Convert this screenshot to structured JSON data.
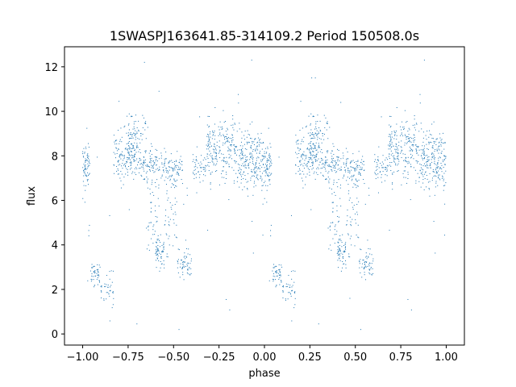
{
  "chart_data": {
    "type": "scatter",
    "title": "1SWASPJ163641.85-314109.2 Period 150508.0s",
    "xlabel": "phase",
    "ylabel": "flux",
    "xlim": [
      -1.1,
      1.1
    ],
    "ylim": [
      -0.5,
      12.9
    ],
    "xticks": [
      -1.0,
      -0.75,
      -0.5,
      -0.25,
      0.0,
      0.25,
      0.5,
      0.75,
      1.0
    ],
    "xtick_labels": [
      "−1.00",
      "−0.75",
      "−0.50",
      "−0.25",
      "0.00",
      "0.25",
      "0.50",
      "0.75",
      "1.00"
    ],
    "yticks": [
      0,
      2,
      4,
      6,
      8,
      10,
      12
    ],
    "ytick_labels": [
      "0",
      "2",
      "4",
      "6",
      "8",
      "10",
      "12"
    ],
    "grid": false,
    "marker_color": "#1f77b4",
    "series": [
      {
        "period_phase": true,
        "clusters": [
          {
            "phase": [
              0.0,
              0.04
            ],
            "flux_mean": 7.6,
            "flux_sd": 0.55,
            "n": 70
          },
          {
            "phase": [
              0.04,
              0.1
            ],
            "flux_mean": 2.7,
            "flux_sd": 0.25,
            "n": 45
          },
          {
            "phase": [
              0.1,
              0.17
            ],
            "flux_mean": 2.0,
            "flux_sd": 0.35,
            "n": 40
          },
          {
            "phase": [
              0.17,
              0.3
            ],
            "flux_mean": 8.1,
            "flux_sd": 0.6,
            "n": 160
          },
          {
            "phase": [
              0.25,
              0.35
            ],
            "flux_mean": 8.9,
            "flux_sd": 0.55,
            "n": 70
          },
          {
            "phase": [
              0.3,
              0.45
            ],
            "flux_mean": 7.6,
            "flux_sd": 0.35,
            "n": 110
          },
          {
            "phase": [
              0.35,
              0.42
            ],
            "flux_mean": 5.5,
            "flux_sd": 1.1,
            "n": 50
          },
          {
            "phase": [
              0.4,
              0.45
            ],
            "flux_mean": 3.7,
            "flux_sd": 0.35,
            "n": 60
          },
          {
            "phase": [
              0.45,
              0.52
            ],
            "flux_mean": 5.6,
            "flux_sd": 1.3,
            "n": 50
          },
          {
            "phase": [
              0.45,
              0.55
            ],
            "flux_mean": 7.5,
            "flux_sd": 0.35,
            "n": 80
          },
          {
            "phase": [
              0.52,
              0.6
            ],
            "flux_mean": 3.1,
            "flux_sd": 0.35,
            "n": 60
          },
          {
            "phase": [
              0.6,
              0.68
            ],
            "flux_mean": 7.5,
            "flux_sd": 0.3,
            "n": 50
          },
          {
            "phase": [
              0.68,
              0.85
            ],
            "flux_mean": 8.3,
            "flux_sd": 0.6,
            "n": 220
          },
          {
            "phase": [
              0.85,
              1.0
            ],
            "flux_mean": 7.8,
            "flux_sd": 0.75,
            "n": 230
          },
          {
            "phase": [
              0.0,
              1.0
            ],
            "flux_mean": 6.5,
            "flux_sd": 2.3,
            "n": 40
          }
        ],
        "outliers": [
          {
            "phase": 0.26,
            "flux": 11.5
          },
          {
            "phase": 0.28,
            "flux": 11.5
          },
          {
            "phase": -0.07,
            "flux": 12.3
          },
          {
            "phase": -0.66,
            "flux": 12.2
          },
          {
            "phase": 0.88,
            "flux": 12.3
          },
          {
            "phase": 0.42,
            "flux": 10.4
          },
          {
            "phase": 0.53,
            "flux": 0.2
          },
          {
            "phase": -0.47,
            "flux": 0.2
          },
          {
            "phase": -0.58,
            "flux": 10.9
          },
          {
            "phase": 0.47,
            "flux": 1.6
          }
        ]
      }
    ]
  }
}
